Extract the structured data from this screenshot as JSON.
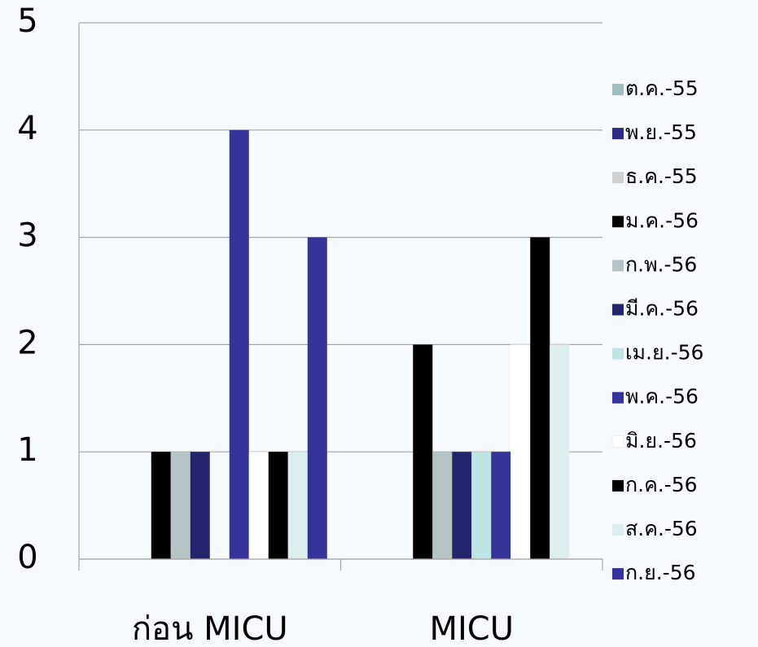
{
  "chart_data": {
    "type": "bar",
    "categories": [
      "ก่อน MICU",
      "MICU"
    ],
    "series": [
      {
        "name": "ต.ค.-55",
        "color": "#9fbcbf",
        "values": [
          0,
          0
        ]
      },
      {
        "name": "พ.ย.-55",
        "color": "#2b2b86",
        "values": [
          0,
          0
        ]
      },
      {
        "name": "ธ.ค.-55",
        "color": "#d0d0d0",
        "values": [
          0,
          0
        ]
      },
      {
        "name": "ม.ค.-56",
        "color": "#000000",
        "values": [
          1,
          2
        ]
      },
      {
        "name": "ก.พ.-56",
        "color": "#b4c3c3",
        "values": [
          1,
          1
        ]
      },
      {
        "name": "มี.ค.-56",
        "color": "#24246e",
        "values": [
          1,
          1
        ]
      },
      {
        "name": "เม.ย.-56",
        "color": "#bfe4e4",
        "values": [
          0,
          1
        ]
      },
      {
        "name": "พ.ค.-56",
        "color": "#33339a",
        "values": [
          4,
          1
        ]
      },
      {
        "name": "มิ.ย.-56",
        "color": "#ffffff",
        "values": [
          1,
          2
        ]
      },
      {
        "name": "ก.ค.-56",
        "color": "#000000",
        "values": [
          1,
          3
        ]
      },
      {
        "name": "ส.ค.-56",
        "color": "#ddeeee",
        "values": [
          1,
          2
        ]
      },
      {
        "name": "ก.ย.-56",
        "color": "#33339a",
        "values": [
          3,
          0
        ]
      }
    ],
    "ylim": [
      0,
      5
    ],
    "yticks": [
      0,
      1,
      2,
      3,
      4,
      5
    ],
    "grid": true,
    "legend": "right"
  }
}
